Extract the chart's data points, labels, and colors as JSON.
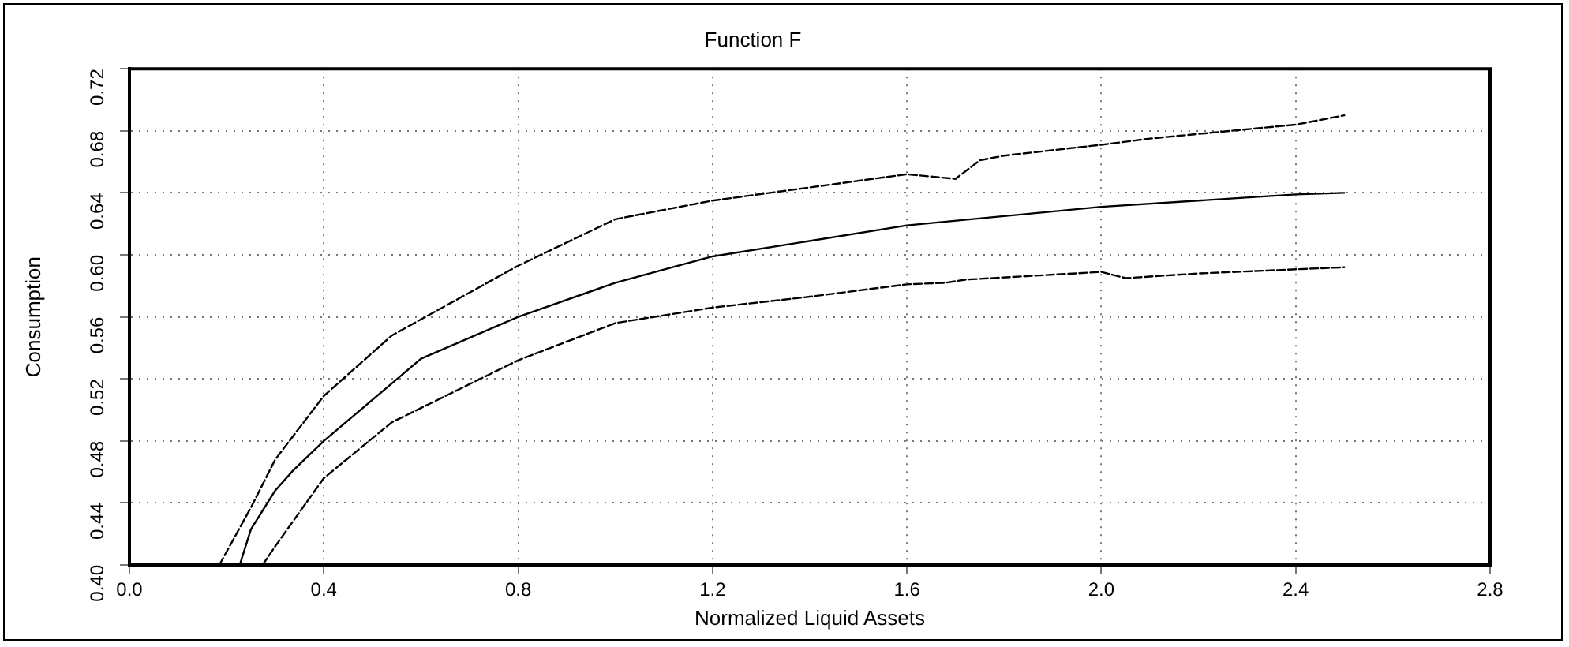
{
  "chart_data": {
    "type": "line",
    "title": "Function F",
    "xlabel": "Normalized Liquid Assets",
    "ylabel": "Consumption",
    "xlim": [
      0,
      2.8
    ],
    "xticks": [
      {
        "value": 0,
        "label": "0.0"
      },
      0.4,
      0.8,
      1.2,
      1.6,
      {
        "value": 2,
        "label": "2.0"
      },
      2.4,
      2.8
    ],
    "ylim": [
      0.4,
      0.72
    ],
    "yticks": [
      {
        "value": 0.4,
        "label": "0.40"
      },
      0.44,
      0.48,
      0.52,
      0.56,
      {
        "value": 0.6,
        "label": "0.60"
      },
      0.64,
      0.68,
      0.72
    ],
    "grid": true,
    "legend": false,
    "marker": "none",
    "series": [
      {
        "color": "#000000",
        "line_style": "solid",
        "x": [
          0.227,
          0.25,
          0.3,
          0.337,
          0.4,
          0.6,
          0.8,
          1.0,
          1.2,
          1.6,
          2.0,
          2.4,
          2.5
        ],
        "values": [
          0.4,
          0.423,
          0.448,
          0.461,
          0.48,
          0.533,
          0.56,
          0.582,
          0.599,
          0.619,
          0.631,
          0.639,
          0.64
        ]
      },
      {
        "color": "#000000",
        "line_style": "dashed",
        "x": [
          0.185,
          0.25,
          0.3,
          0.4,
          0.54,
          0.8,
          1.0,
          1.2,
          1.6,
          1.7,
          1.75,
          1.8,
          2.0,
          2.1,
          2.4,
          2.5
        ],
        "values": [
          0.4,
          0.437,
          0.468,
          0.509,
          0.548,
          0.593,
          0.623,
          0.635,
          0.652,
          0.649,
          0.661,
          0.664,
          0.671,
          0.675,
          0.684,
          0.69
        ]
      },
      {
        "color": "#000000",
        "line_style": "dashed",
        "x": [
          0.274,
          0.3,
          0.4,
          0.54,
          0.8,
          1.0,
          1.2,
          1.4,
          1.6,
          1.68,
          1.72,
          2.0,
          2.05,
          2.2,
          2.5
        ],
        "values": [
          0.4,
          0.412,
          0.456,
          0.492,
          0.532,
          0.556,
          0.566,
          0.573,
          0.581,
          0.582,
          0.584,
          0.589,
          0.585,
          0.588,
          0.592
        ]
      }
    ]
  }
}
